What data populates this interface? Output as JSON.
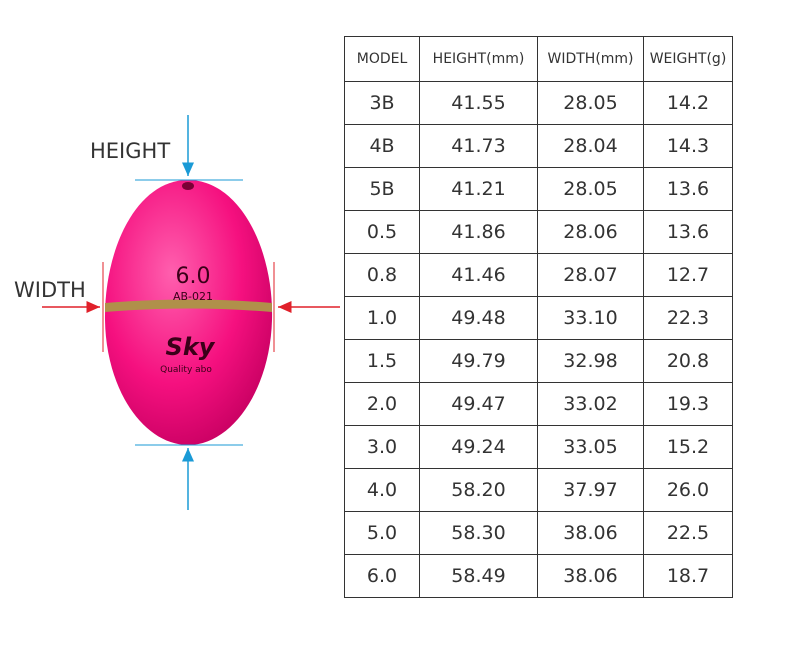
{
  "labels": {
    "height": "HEIGHT",
    "width": "WIDTH"
  },
  "float": {
    "size": "6.0",
    "code": "AB-021",
    "brand": "Sky",
    "tagline": "Quality abo"
  },
  "table": {
    "header": [
      "MODEL",
      "HEIGHT(mm)",
      "WIDTH(mm)",
      "WEIGHT(g)"
    ],
    "rows": [
      [
        "3B",
        "41.55",
        "28.05",
        "14.2"
      ],
      [
        "4B",
        "41.73",
        "28.04",
        "14.3"
      ],
      [
        "5B",
        "41.21",
        "28.05",
        "13.6"
      ],
      [
        "0.5",
        "41.86",
        "28.06",
        "13.6"
      ],
      [
        "0.8",
        "41.46",
        "28.07",
        "12.7"
      ],
      [
        "1.0",
        "49.48",
        "33.10",
        "22.3"
      ],
      [
        "1.5",
        "49.79",
        "32.98",
        "20.8"
      ],
      [
        "2.0",
        "49.47",
        "33.02",
        "19.3"
      ],
      [
        "3.0",
        "49.24",
        "33.05",
        "15.2"
      ],
      [
        "4.0",
        "58.20",
        "37.97",
        "26.0"
      ],
      [
        "5.0",
        "58.30",
        "38.06",
        "22.5"
      ],
      [
        "6.0",
        "58.49",
        "38.06",
        "18.7"
      ]
    ]
  }
}
